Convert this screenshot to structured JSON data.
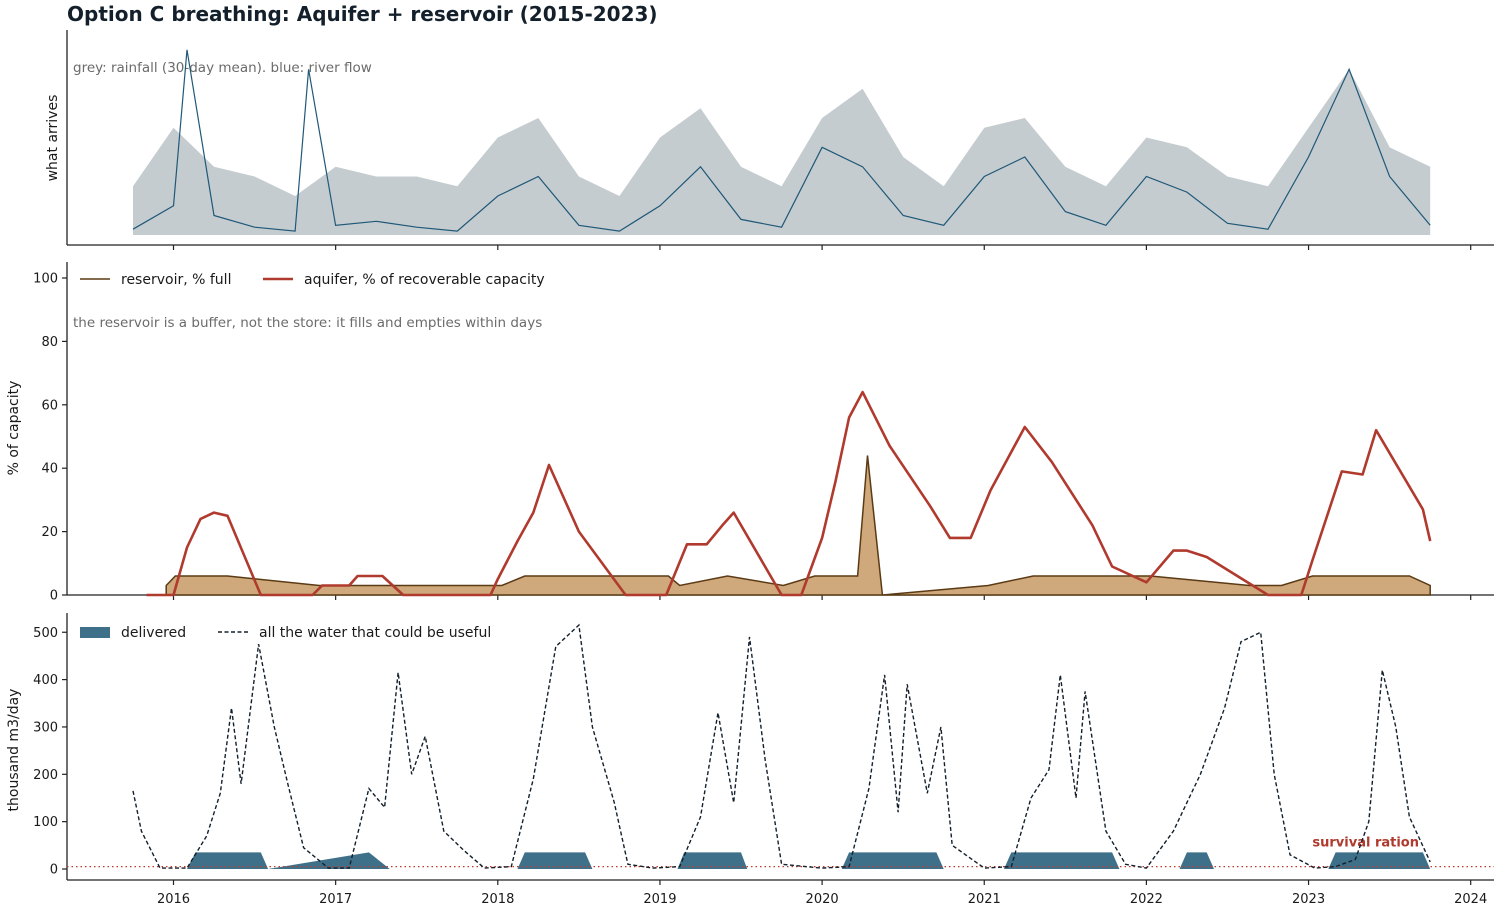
{
  "title": "Option C breathing: Aquifer + reservoir  (2015-2023)",
  "colors": {
    "rain_fill": "#c5ccd0",
    "river_line": "#1f5878",
    "reservoir_line": "#5b3a14",
    "reservoir_fill": "#cfa97c",
    "aquifer_line": "#b03a2e",
    "delivered_fill": "#3f7089",
    "useful_line": "#13202c",
    "ration_line": "#c0392b",
    "ration_text": "#b03a2e"
  },
  "x_ticks": [
    "2016",
    "2017",
    "2018",
    "2019",
    "2020",
    "2021",
    "2022",
    "2023",
    "2024"
  ],
  "chart_data": [
    {
      "type": "area",
      "panel": "what arrives",
      "ylabel": "what arrives",
      "annotation": "grey: rainfall (30-day mean).   blue: river flow",
      "x_range": [
        "2015-10",
        "2023-10"
      ],
      "y_ticks_shown": false,
      "series": [
        {
          "name": "rainfall (30-day mean)",
          "style": "grey area",
          "x": [
            "2015-10",
            "2016-01",
            "2016-04",
            "2016-07",
            "2016-10",
            "2017-01",
            "2017-04",
            "2017-07",
            "2017-10",
            "2018-01",
            "2018-04",
            "2018-07",
            "2018-10",
            "2019-01",
            "2019-04",
            "2019-07",
            "2019-10",
            "2020-01",
            "2020-04",
            "2020-07",
            "2020-10",
            "2021-01",
            "2021-04",
            "2021-07",
            "2021-10",
            "2022-01",
            "2022-04",
            "2022-07",
            "2022-10",
            "2023-01",
            "2023-04",
            "2023-07",
            "2023-10"
          ],
          "values": [
            0.25,
            0.55,
            0.35,
            0.3,
            0.2,
            0.35,
            0.3,
            0.3,
            0.25,
            0.5,
            0.6,
            0.3,
            0.2,
            0.5,
            0.65,
            0.35,
            0.25,
            0.6,
            0.75,
            0.4,
            0.25,
            0.55,
            0.6,
            0.35,
            0.25,
            0.5,
            0.45,
            0.3,
            0.25,
            0.55,
            0.85,
            0.45,
            0.35
          ]
        },
        {
          "name": "river flow",
          "style": "blue line",
          "x": [
            "2015-10",
            "2016-01",
            "2016-02",
            "2016-04",
            "2016-07",
            "2016-10",
            "2016-11",
            "2017-01",
            "2017-04",
            "2017-07",
            "2017-10",
            "2018-01",
            "2018-04",
            "2018-07",
            "2018-10",
            "2019-01",
            "2019-04",
            "2019-07",
            "2019-10",
            "2020-01",
            "2020-04",
            "2020-07",
            "2020-10",
            "2021-01",
            "2021-04",
            "2021-07",
            "2021-10",
            "2022-01",
            "2022-04",
            "2022-07",
            "2022-10",
            "2023-01",
            "2023-04",
            "2023-07",
            "2023-10"
          ],
          "values": [
            0.03,
            0.15,
            0.95,
            0.1,
            0.04,
            0.02,
            0.85,
            0.05,
            0.07,
            0.04,
            0.02,
            0.2,
            0.3,
            0.05,
            0.02,
            0.15,
            0.35,
            0.08,
            0.04,
            0.45,
            0.35,
            0.1,
            0.05,
            0.3,
            0.4,
            0.12,
            0.05,
            0.3,
            0.22,
            0.06,
            0.03,
            0.4,
            0.85,
            0.3,
            0.05
          ]
        }
      ]
    },
    {
      "type": "line",
      "panel": "storage",
      "ylabel": "% of capacity",
      "ylim": [
        0,
        105
      ],
      "yticks": [
        0,
        20,
        40,
        60,
        80,
        100
      ],
      "annotation": "the reservoir is a buffer, not the store: it fills and empties within days",
      "legend": "top-left",
      "series": [
        {
          "name": "reservoir, % full",
          "x": [
            "2015-12-15",
            "2016-01-05",
            "2016-02-01",
            "2016-05-01",
            "2016-11-25",
            "2017-05-01",
            "2018-01-10",
            "2018-03-01",
            "2018-04-20",
            "2019-01-20",
            "2019-02-15",
            "2019-06-01",
            "2019-10-05",
            "2019-12-15",
            "2020-01-25",
            "2020-02-25",
            "2020-03-20",
            "2020-04-12",
            "2020-05-15",
            "2021-01-10",
            "2021-04-20",
            "2021-09-15",
            "2021-11-20",
            "2022-01-10",
            "2022-08-20",
            "2022-11-01",
            "2023-01-10",
            "2023-04-01",
            "2023-05-20",
            "2023-08-15",
            "2023-10-01"
          ],
          "values": [
            3,
            6,
            6,
            6,
            3,
            3,
            3,
            6,
            6,
            6,
            3,
            6,
            3,
            6,
            6,
            6,
            6,
            44,
            0,
            3,
            6,
            6,
            6,
            6,
            3,
            3,
            6,
            6,
            6,
            6,
            3
          ]
        },
        {
          "name": "aquifer, % of recoverable capacity",
          "x": [
            "2015-11-01",
            "2016-01-01",
            "2016-02-01",
            "2016-03-01",
            "2016-04-01",
            "2016-05-01",
            "2016-07-15",
            "2016-11-10",
            "2016-12-01",
            "2017-02-01",
            "2017-02-20",
            "2017-04-15",
            "2017-06-01",
            "2017-12-15",
            "2018-01-01",
            "2018-02-15",
            "2018-03-20",
            "2018-04-25",
            "2018-07-01",
            "2018-10-15",
            "2018-12-01",
            "2019-01-15",
            "2019-03-01",
            "2019-04-15",
            "2019-05-20",
            "2019-06-15",
            "2019-10-01",
            "2019-11-15",
            "2020-01-01",
            "2020-02-01",
            "2020-03-01",
            "2020-04-01",
            "2020-06-01",
            "2020-09-01",
            "2020-10-15",
            "2020-12-01",
            "2021-01-15",
            "2021-04-01",
            "2021-06-01",
            "2021-09-01",
            "2021-10-15",
            "2022-01-01",
            "2022-03-01",
            "2022-04-01",
            "2022-05-15",
            "2022-10-01",
            "2022-12-15",
            "2023-01-10",
            "2023-03-15",
            "2023-05-01",
            "2023-06-01",
            "2023-09-15",
            "2023-10-01"
          ],
          "values": [
            0,
            0,
            15,
            24,
            26,
            25,
            0,
            0,
            3,
            3,
            6,
            6,
            0,
            0,
            5,
            17,
            26,
            41,
            20,
            0,
            0,
            0,
            16,
            16,
            22,
            26,
            0,
            0,
            18,
            36,
            56,
            64,
            47,
            28,
            18,
            18,
            33,
            53,
            42,
            22,
            9,
            4,
            14,
            14,
            12,
            0,
            0,
            11,
            39,
            38,
            52,
            27,
            17
          ]
        }
      ]
    },
    {
      "type": "line",
      "panel": "supply",
      "ylabel": "thousand m3/day",
      "ylim": [
        0,
        520
      ],
      "yticks": [
        0,
        100,
        200,
        300,
        400,
        500
      ],
      "legend": "top-left",
      "reference_line": {
        "label": "survival ration",
        "value": 5
      },
      "series": [
        {
          "name": "delivered",
          "style": "filled area",
          "x": [
            "2016-02-01",
            "2016-02-20",
            "2016-07-15",
            "2016-08-01",
            "2017-03-15",
            "2017-05-01",
            "2018-02-15",
            "2018-03-01",
            "2018-07-15",
            "2018-08-01",
            "2019-02-10",
            "2019-02-25",
            "2019-07-01",
            "2019-07-15",
            "2020-02-15",
            "2020-03-01",
            "2020-09-15",
            "2020-10-01",
            "2021-02-15",
            "2021-03-01",
            "2021-10-15",
            "2021-11-01",
            "2022-03-15",
            "2022-04-01",
            "2022-05-15",
            "2022-06-01",
            "2023-02-15",
            "2023-03-01",
            "2023-09-15",
            "2023-10-01"
          ],
          "values": [
            0,
            35,
            35,
            0,
            35,
            0,
            0,
            35,
            35,
            0,
            0,
            35,
            35,
            0,
            0,
            35,
            35,
            0,
            0,
            35,
            35,
            0,
            0,
            35,
            35,
            0,
            0,
            35,
            35,
            0
          ]
        },
        {
          "name": "all the water that could be useful",
          "style": "dashed line",
          "x": [
            "2015-10-01",
            "2015-10-20",
            "2015-12-01",
            "2016-02-01",
            "2016-03-15",
            "2016-04-15",
            "2016-05-10",
            "2016-06-01",
            "2016-07-10",
            "2016-08-15",
            "2016-09-15",
            "2016-10-20",
            "2016-12-15",
            "2017-02-01",
            "2017-03-15",
            "2017-04-20",
            "2017-05-20",
            "2017-06-20",
            "2017-07-20",
            "2017-09-01",
            "2017-10-15",
            "2017-12-01",
            "2018-02-01",
            "2018-03-20",
            "2018-05-10",
            "2018-07-01",
            "2018-08-01",
            "2018-09-20",
            "2018-10-20",
            "2018-12-15",
            "2019-02-15",
            "2019-04-01",
            "2019-05-10",
            "2019-06-15",
            "2019-07-20",
            "2019-08-25",
            "2019-10-01",
            "2020-01-01",
            "2020-03-01",
            "2020-04-15",
            "2020-05-20",
            "2020-06-20",
            "2020-07-10",
            "2020-08-25",
            "2020-09-25",
            "2020-10-20",
            "2021-01-01",
            "2021-03-01",
            "2021-04-15",
            "2021-05-25",
            "2021-06-20",
            "2021-07-25",
            "2021-08-15",
            "2021-10-01",
            "2021-11-15",
            "2022-01-01",
            "2022-03-01",
            "2022-05-01",
            "2022-06-25",
            "2022-08-01",
            "2022-09-15",
            "2022-10-15",
            "2022-11-20",
            "2023-01-15",
            "2023-03-01",
            "2023-04-15",
            "2023-05-15",
            "2023-06-15",
            "2023-07-15",
            "2023-08-15",
            "2023-10-01"
          ],
          "values": [
            165,
            80,
            2,
            2,
            70,
            160,
            340,
            180,
            475,
            300,
            180,
            45,
            2,
            2,
            170,
            130,
            415,
            200,
            280,
            80,
            40,
            2,
            5,
            190,
            470,
            515,
            300,
            140,
            10,
            2,
            5,
            110,
            330,
            140,
            490,
            230,
            10,
            2,
            5,
            170,
            410,
            120,
            390,
            160,
            300,
            50,
            2,
            5,
            150,
            210,
            410,
            150,
            375,
            80,
            10,
            2,
            80,
            200,
            340,
            480,
            500,
            200,
            30,
            2,
            5,
            20,
            100,
            420,
            300,
            110,
            15
          ]
        }
      ]
    }
  ]
}
